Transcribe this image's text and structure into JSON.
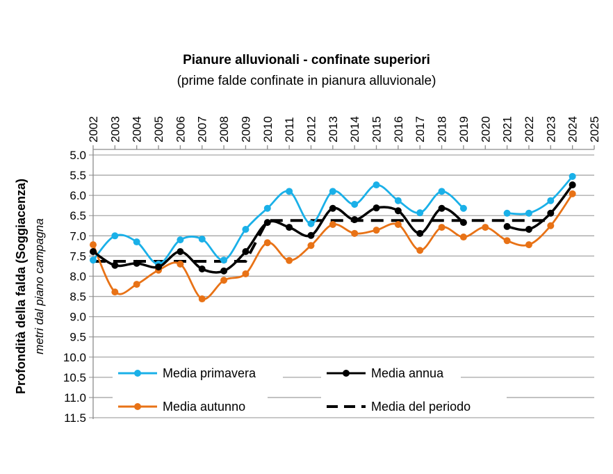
{
  "chart_data": {
    "type": "line",
    "title": "Pianure alluvionali  - confinate superiori",
    "subtitle": "(prime falde confinate in pianura alluvionale)",
    "ylabel": "Profondità della falda (Soggiacenza)",
    "ylabel2": "metri dal piano campagna",
    "xlabel": "",
    "x": [
      2002,
      2003,
      2004,
      2005,
      2006,
      2007,
      2008,
      2009,
      2010,
      2011,
      2012,
      2013,
      2014,
      2015,
      2016,
      2017,
      2018,
      2019,
      2020,
      2021,
      2022,
      2023,
      2024,
      2025
    ],
    "ylim": [
      5.0,
      11.5
    ],
    "y_inverted": true,
    "y_ticks": [
      "5.0",
      "5.5",
      "6.0",
      "6.5",
      "7.0",
      "7.5",
      "8.0",
      "8.5",
      "9.0",
      "9.5",
      "10.0",
      "10.5",
      "11.0",
      "11.5"
    ],
    "grid": true,
    "legend_placement": "bottom-inside",
    "series": [
      {
        "name": "Media primavera",
        "color": "#1AB0E8",
        "style": "solid-marker",
        "values": [
          7.6,
          7.0,
          7.15,
          7.7,
          7.1,
          7.08,
          7.6,
          6.84,
          6.32,
          5.9,
          6.7,
          5.9,
          6.22,
          5.74,
          6.13,
          6.43,
          5.9,
          6.32,
          null,
          6.44,
          6.44,
          6.13,
          5.53,
          null
        ]
      },
      {
        "name": "Media annua",
        "color": "#000000",
        "style": "solid-marker",
        "values": [
          7.39,
          7.73,
          7.68,
          7.77,
          7.39,
          7.82,
          7.87,
          7.39,
          6.67,
          6.79,
          6.99,
          6.32,
          6.6,
          6.31,
          6.38,
          6.94,
          6.32,
          6.67,
          null,
          6.77,
          6.84,
          6.44,
          5.74,
          null
        ]
      },
      {
        "name": "Media autunno",
        "color": "#E87216",
        "style": "solid-marker",
        "values": [
          7.22,
          8.39,
          8.2,
          7.85,
          7.7,
          8.56,
          8.1,
          7.94,
          7.17,
          7.61,
          7.24,
          6.72,
          6.94,
          6.86,
          6.72,
          7.36,
          6.79,
          7.03,
          6.79,
          7.12,
          7.22,
          6.75,
          5.96,
          null
        ]
      },
      {
        "name": "Media del periodo",
        "color": "#000000",
        "style": "dashed",
        "values": [
          7.63,
          7.63,
          7.63,
          7.63,
          7.63,
          7.63,
          7.63,
          7.63,
          6.62,
          6.62,
          6.62,
          6.62,
          6.62,
          6.62,
          6.62,
          6.62,
          6.62,
          6.62,
          6.62,
          6.62,
          6.62,
          6.62,
          null,
          null
        ]
      }
    ]
  }
}
